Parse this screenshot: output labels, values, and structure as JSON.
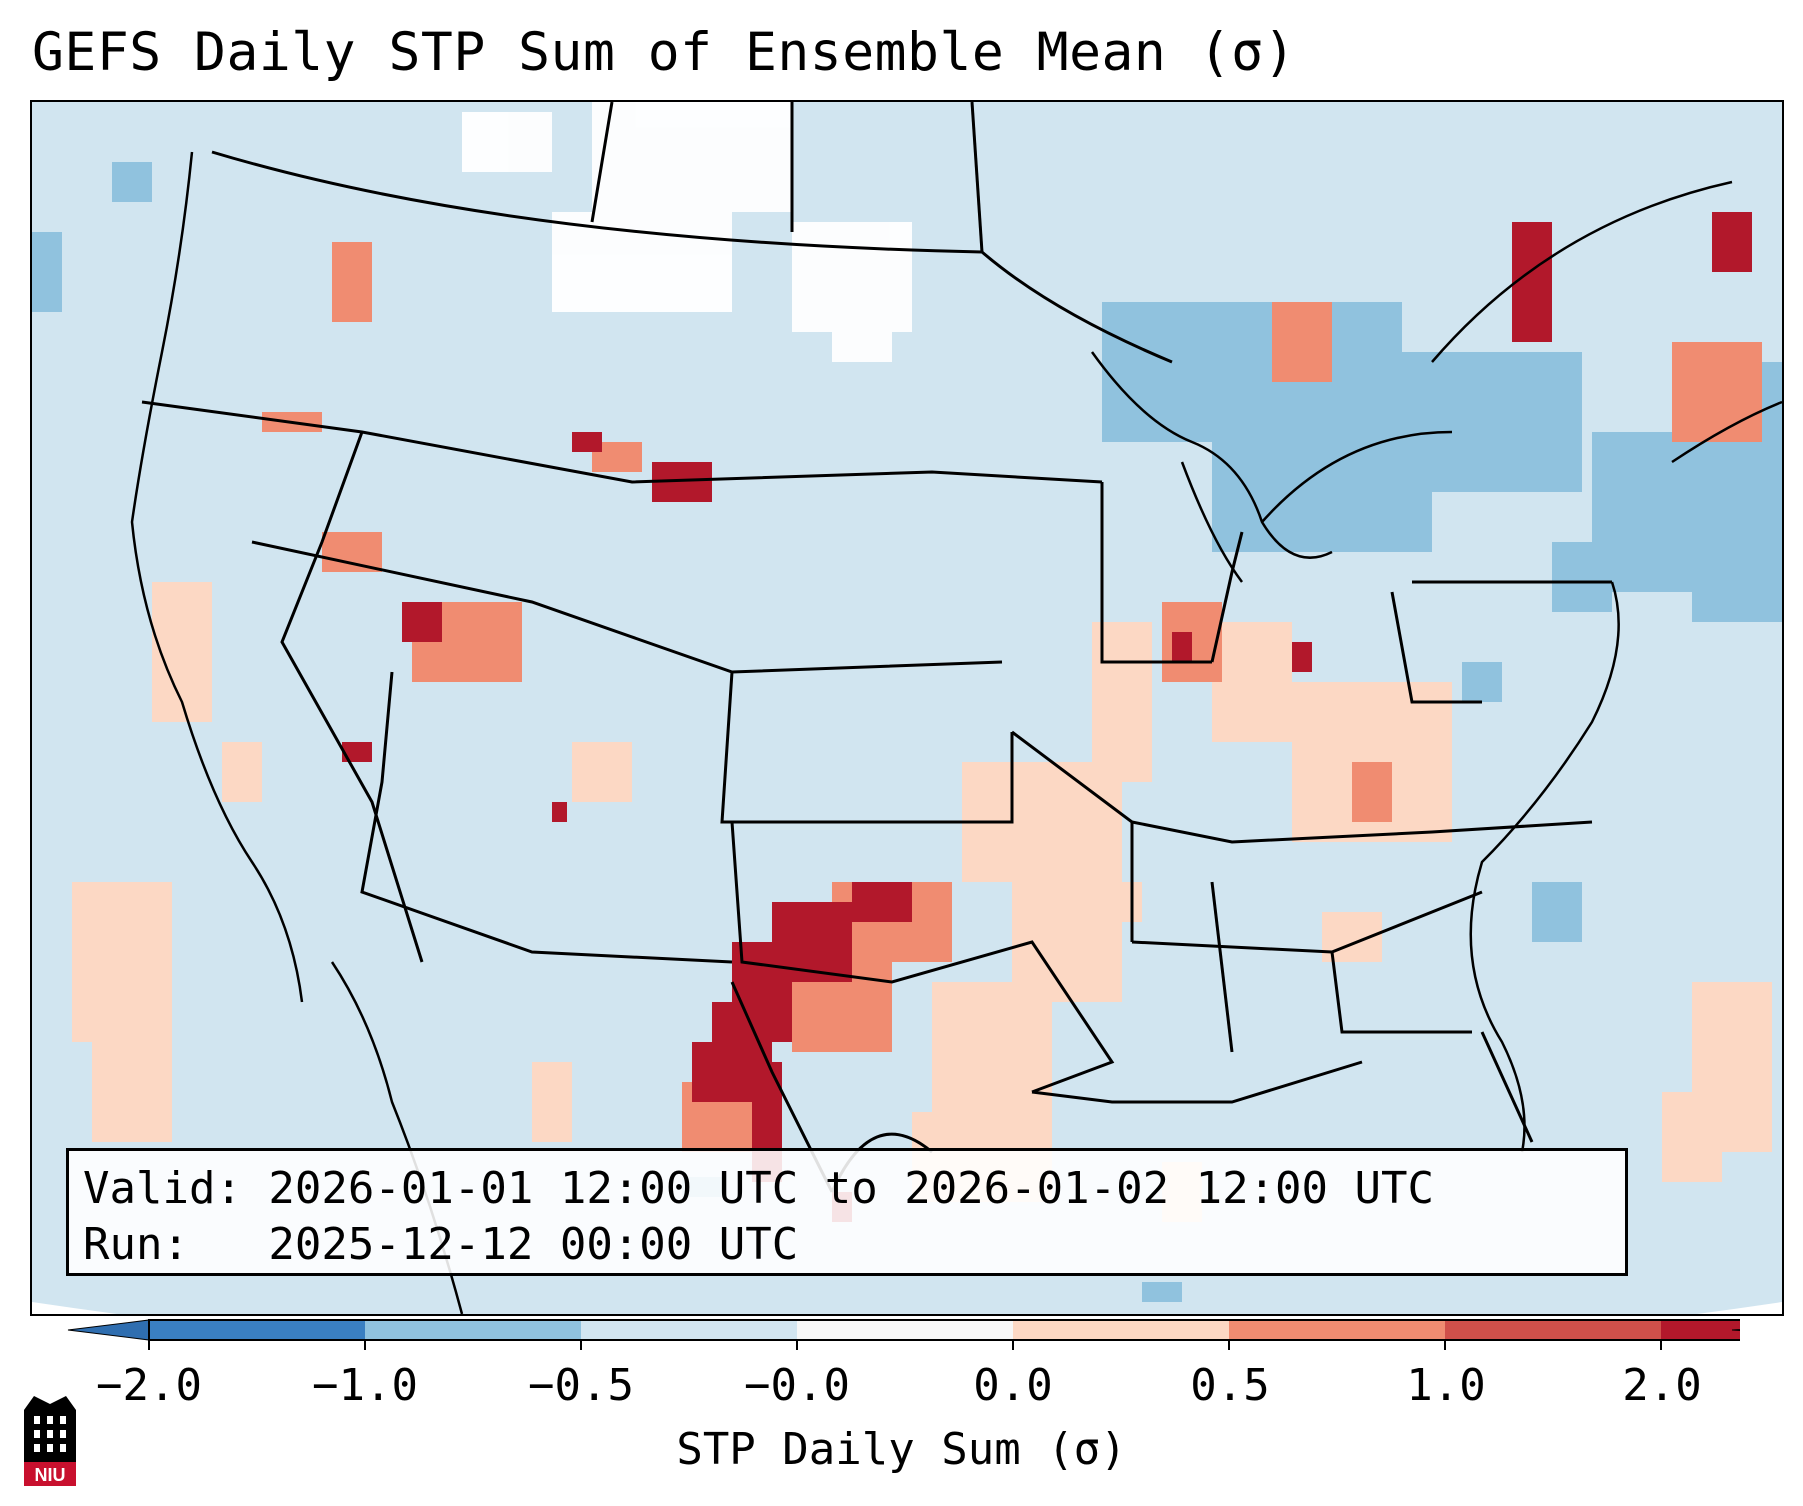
{
  "title": "GEFS Daily STP Sum of Ensemble Mean (σ)",
  "info": {
    "valid_line": "Valid: 2026-01-01 12:00 UTC to 2026-01-02 12:00 UTC",
    "run_line": "Run:   2025-12-12 00:00 UTC"
  },
  "colorbar": {
    "label": "STP Daily Sum (σ)",
    "ticks": [
      "−2.0",
      "−1.0",
      "−0.5",
      "−0.0",
      "0.0",
      "0.5",
      "1.0",
      "2.0"
    ],
    "colors": [
      "#3a7fc1",
      "#90c2de",
      "#d2e5f0",
      "#f7f7f7",
      "#fcd8c4",
      "#f08c71",
      "#d0504a",
      "#b2182b"
    ],
    "extend": "both"
  },
  "map": {
    "projection": "Lambert conformal, CONUS",
    "background_color": "#d1e5f0",
    "ocean_outside_color": "#ffffff",
    "borders": "black state and country outlines"
  },
  "logo": {
    "text": "NIU",
    "colors": [
      "#c8102e",
      "#000000"
    ]
  }
}
